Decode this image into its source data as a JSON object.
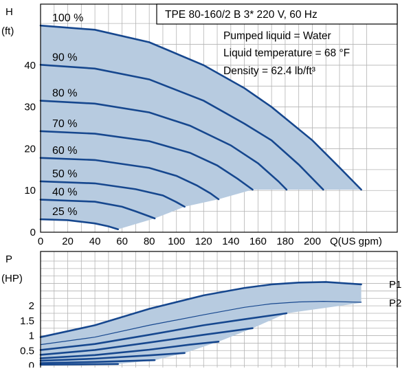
{
  "colors": {
    "fill": "#b7cbe0",
    "curve": "#16478e",
    "grid": "#b3b3b3",
    "frame": "#000000"
  },
  "chart_data": [
    {
      "type": "line",
      "title": "TPE 80-160/2 B    3* 220 V, 60 Hz",
      "info": [
        "Pumped liquid = Water",
        "Liquid temperature = 68 °F",
        "Density = 62.4 lb/ft³"
      ],
      "ylabel": [
        "H",
        "(ft)"
      ],
      "xlabel": "Q(US gpm)",
      "xlim": [
        0,
        220
      ],
      "ylim": [
        0,
        52
      ],
      "xticks": [
        "0",
        "20",
        "40",
        "60",
        "80",
        "100",
        "120",
        "140",
        "160",
        "180",
        "200"
      ],
      "yticks": [
        "0",
        "10",
        "20",
        "30",
        "40"
      ],
      "grid": true,
      "series": [
        {
          "name": "100 %",
          "x": [
            0,
            40,
            80,
            120,
            150,
            170,
            200,
            220,
            236
          ],
          "y": [
            49.5,
            48.5,
            45.5,
            40,
            34.5,
            30,
            22,
            15.5,
            10.2
          ]
        },
        {
          "name": "90 %",
          "x": [
            0,
            40,
            80,
            120,
            150,
            170,
            190,
            208
          ],
          "y": [
            40.1,
            39.2,
            36.6,
            31.5,
            26,
            22,
            16.2,
            10.2
          ]
        },
        {
          "name": "80 %",
          "x": [
            0,
            40,
            80,
            110,
            140,
            160,
            175,
            181
          ],
          "y": [
            31.5,
            30.8,
            28.7,
            25.5,
            20.8,
            16.5,
            12.2,
            10.2
          ]
        },
        {
          "name": "70 %",
          "x": [
            0,
            40,
            80,
            110,
            130,
            145,
            156
          ],
          "y": [
            24.2,
            23.6,
            21.8,
            19,
            16,
            12.8,
            10.2
          ]
        },
        {
          "name": "60 %",
          "x": [
            0,
            40,
            80,
            100,
            115,
            125,
            131
          ],
          "y": [
            17.8,
            17.3,
            15.4,
            13.5,
            11.2,
            9.3,
            7.9
          ]
        },
        {
          "name": "50 %",
          "x": [
            0,
            40,
            70,
            90,
            100,
            106
          ],
          "y": [
            12.2,
            11.7,
            10.3,
            8.8,
            7.2,
            6.1
          ]
        },
        {
          "name": "40 %",
          "x": [
            0,
            40,
            60,
            70,
            80,
            84
          ],
          "y": [
            7.8,
            7.3,
            6.1,
            5,
            3.8,
            3.3
          ]
        },
        {
          "name": "25 %",
          "x": [
            0,
            20,
            40,
            50,
            57
          ],
          "y": [
            3.1,
            2.9,
            2.1,
            1.4,
            0.7
          ]
        }
      ]
    },
    {
      "type": "line",
      "ylabel": [
        "P",
        "(HP)"
      ],
      "xlim": [
        0,
        220
      ],
      "ylim": [
        0,
        3.5
      ],
      "yticks": [
        "0",
        "0.5",
        "1",
        "1.5",
        "2"
      ],
      "grid": true,
      "series": [
        {
          "name": "P1",
          "x": [
            0,
            40,
            80,
            120,
            150,
            170,
            190,
            210,
            236
          ],
          "y": [
            0.95,
            1.35,
            1.9,
            2.35,
            2.6,
            2.72,
            2.78,
            2.8,
            2.72
          ]
        },
        {
          "name": "P2",
          "x": [
            0,
            40,
            80,
            120,
            150,
            170,
            190,
            208,
            236
          ],
          "y": [
            0.7,
            0.95,
            1.35,
            1.7,
            1.95,
            2.07,
            2.13,
            2.15,
            2.12
          ]
        },
        {
          "name": "",
          "x": [
            0,
            40,
            80,
            120,
            150,
            181
          ],
          "y": [
            0.52,
            0.72,
            1.03,
            1.35,
            1.55,
            1.75
          ]
        },
        {
          "name": "",
          "x": [
            0,
            40,
            80,
            120,
            156
          ],
          "y": [
            0.36,
            0.52,
            0.77,
            1.03,
            1.25
          ]
        },
        {
          "name": "",
          "x": [
            0,
            40,
            80,
            110,
            131
          ],
          "y": [
            0.24,
            0.35,
            0.53,
            0.7,
            0.8
          ]
        },
        {
          "name": "",
          "x": [
            0,
            40,
            80,
            106
          ],
          "y": [
            0.16,
            0.23,
            0.34,
            0.42
          ]
        },
        {
          "name": "",
          "x": [
            0,
            40,
            70,
            84
          ],
          "y": [
            0.08,
            0.12,
            0.16,
            0.18
          ]
        },
        {
          "name": "",
          "x": [
            0,
            30,
            57
          ],
          "y": [
            0.03,
            0.04,
            0.05
          ]
        }
      ]
    }
  ]
}
